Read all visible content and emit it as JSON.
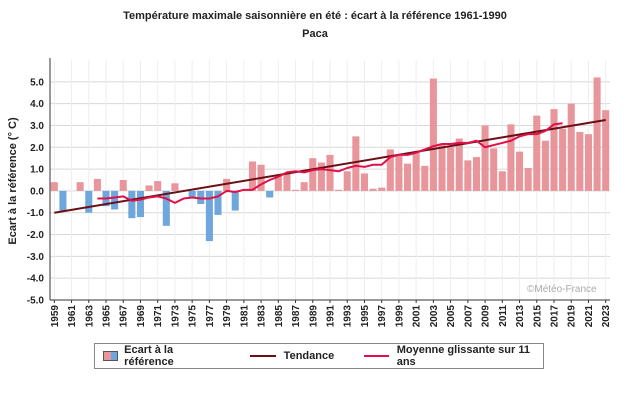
{
  "page": {
    "title": "Température maximale saisonnière en été : écart à la référence 1961-1990",
    "subtitle": "Paca",
    "copyright": "©Météo-France"
  },
  "legend": {
    "bars": "Ecart à la référence",
    "trend": "Tendance",
    "moving": "Moyenne glissante sur 11 ans"
  },
  "colors": {
    "positive": "#e8969b",
    "negative": "#6fa7dc",
    "trend": "#6b0f16",
    "moving": "#e0104a",
    "grid": "#d8d8d8"
  },
  "chart_data": {
    "type": "bar",
    "ylabel": "Ecart à la référence (° C)",
    "ylim": [
      -5.0,
      6.0
    ],
    "yticks": [
      "-5.0",
      "-4.0",
      "-3.0",
      "-2.0",
      "-1.0",
      "0.0",
      "1.0",
      "2.0",
      "3.0",
      "4.0",
      "5.0"
    ],
    "xtick_labels": [
      "1959",
      "1961",
      "1963",
      "1965",
      "1967",
      "1969",
      "1971",
      "1973",
      "1975",
      "1977",
      "1979",
      "1981",
      "1983",
      "1985",
      "1987",
      "1989",
      "1991",
      "1993",
      "1995",
      "1997",
      "1999",
      "2001",
      "2003",
      "2005",
      "2007",
      "2009",
      "2011",
      "2013",
      "2015",
      "2017",
      "2019",
      "2021",
      "2023"
    ],
    "years": [
      1959,
      1960,
      1961,
      1962,
      1963,
      1964,
      1965,
      1966,
      1967,
      1968,
      1969,
      1970,
      1971,
      1972,
      1973,
      1974,
      1975,
      1976,
      1977,
      1978,
      1979,
      1980,
      1981,
      1982,
      1983,
      1984,
      1985,
      1986,
      1987,
      1988,
      1989,
      1990,
      1991,
      1992,
      1993,
      1994,
      1995,
      1996,
      1997,
      1998,
      1999,
      2000,
      2001,
      2002,
      2003,
      2004,
      2005,
      2006,
      2007,
      2008,
      2009,
      2010,
      2011,
      2012,
      2013,
      2014,
      2015,
      2016,
      2017,
      2018,
      2019,
      2020,
      2021,
      2022,
      2023
    ],
    "values": [
      0.4,
      -0.9,
      0.0,
      0.4,
      -1.0,
      0.55,
      -0.7,
      -0.85,
      0.5,
      -1.25,
      -1.2,
      0.25,
      0.45,
      -1.6,
      0.35,
      0.0,
      -0.35,
      -0.6,
      -2.3,
      -1.1,
      0.55,
      -0.9,
      0.05,
      1.35,
      1.2,
      -0.3,
      0.7,
      0.8,
      0.05,
      0.4,
      1.5,
      1.3,
      1.65,
      0.05,
      0.9,
      2.5,
      0.8,
      0.1,
      0.15,
      1.9,
      1.6,
      1.25,
      1.8,
      1.15,
      5.15,
      2.1,
      2.0,
      2.4,
      1.4,
      1.55,
      3.0,
      1.95,
      0.9,
      3.05,
      1.8,
      1.05,
      3.45,
      2.3,
      3.75,
      2.85,
      4.0,
      2.7,
      2.6,
      5.2,
      3.7
    ],
    "trend": {
      "name": "Tendance",
      "x": [
        1959,
        2023
      ],
      "y": [
        -1.0,
        3.25
      ]
    },
    "moving_average": {
      "name": "Moyenne glissante sur 11 ans",
      "x": [
        1964,
        1965,
        1966,
        1967,
        1968,
        1969,
        1970,
        1971,
        1972,
        1973,
        1974,
        1975,
        1976,
        1977,
        1978,
        1979,
        1980,
        1981,
        1982,
        1983,
        1984,
        1985,
        1986,
        1987,
        1988,
        1989,
        1990,
        1991,
        1992,
        1993,
        1994,
        1995,
        1996,
        1997,
        1998,
        1999,
        2000,
        2001,
        2002,
        2003,
        2004,
        2005,
        2006,
        2007,
        2008,
        2009,
        2010,
        2011,
        2012,
        2013,
        2014,
        2015,
        2016,
        2017,
        2018
      ],
      "y": [
        -0.35,
        -0.35,
        -0.3,
        -0.25,
        -0.45,
        -0.4,
        -0.3,
        -0.25,
        -0.35,
        -0.55,
        -0.35,
        -0.3,
        -0.35,
        -0.35,
        -0.25,
        0.0,
        -0.05,
        0.05,
        0.05,
        0.3,
        0.5,
        0.65,
        0.85,
        0.9,
        0.85,
        0.95,
        1.0,
        0.95,
        0.9,
        1.05,
        1.15,
        1.1,
        1.2,
        1.2,
        1.55,
        1.65,
        1.65,
        1.75,
        1.9,
        2.05,
        2.15,
        2.15,
        2.2,
        2.2,
        2.3,
        2.0,
        2.1,
        2.2,
        2.3,
        2.5,
        2.6,
        2.6,
        2.75,
        3.05,
        3.1
      ]
    },
    "grid": true,
    "legend_position": "bottom"
  }
}
